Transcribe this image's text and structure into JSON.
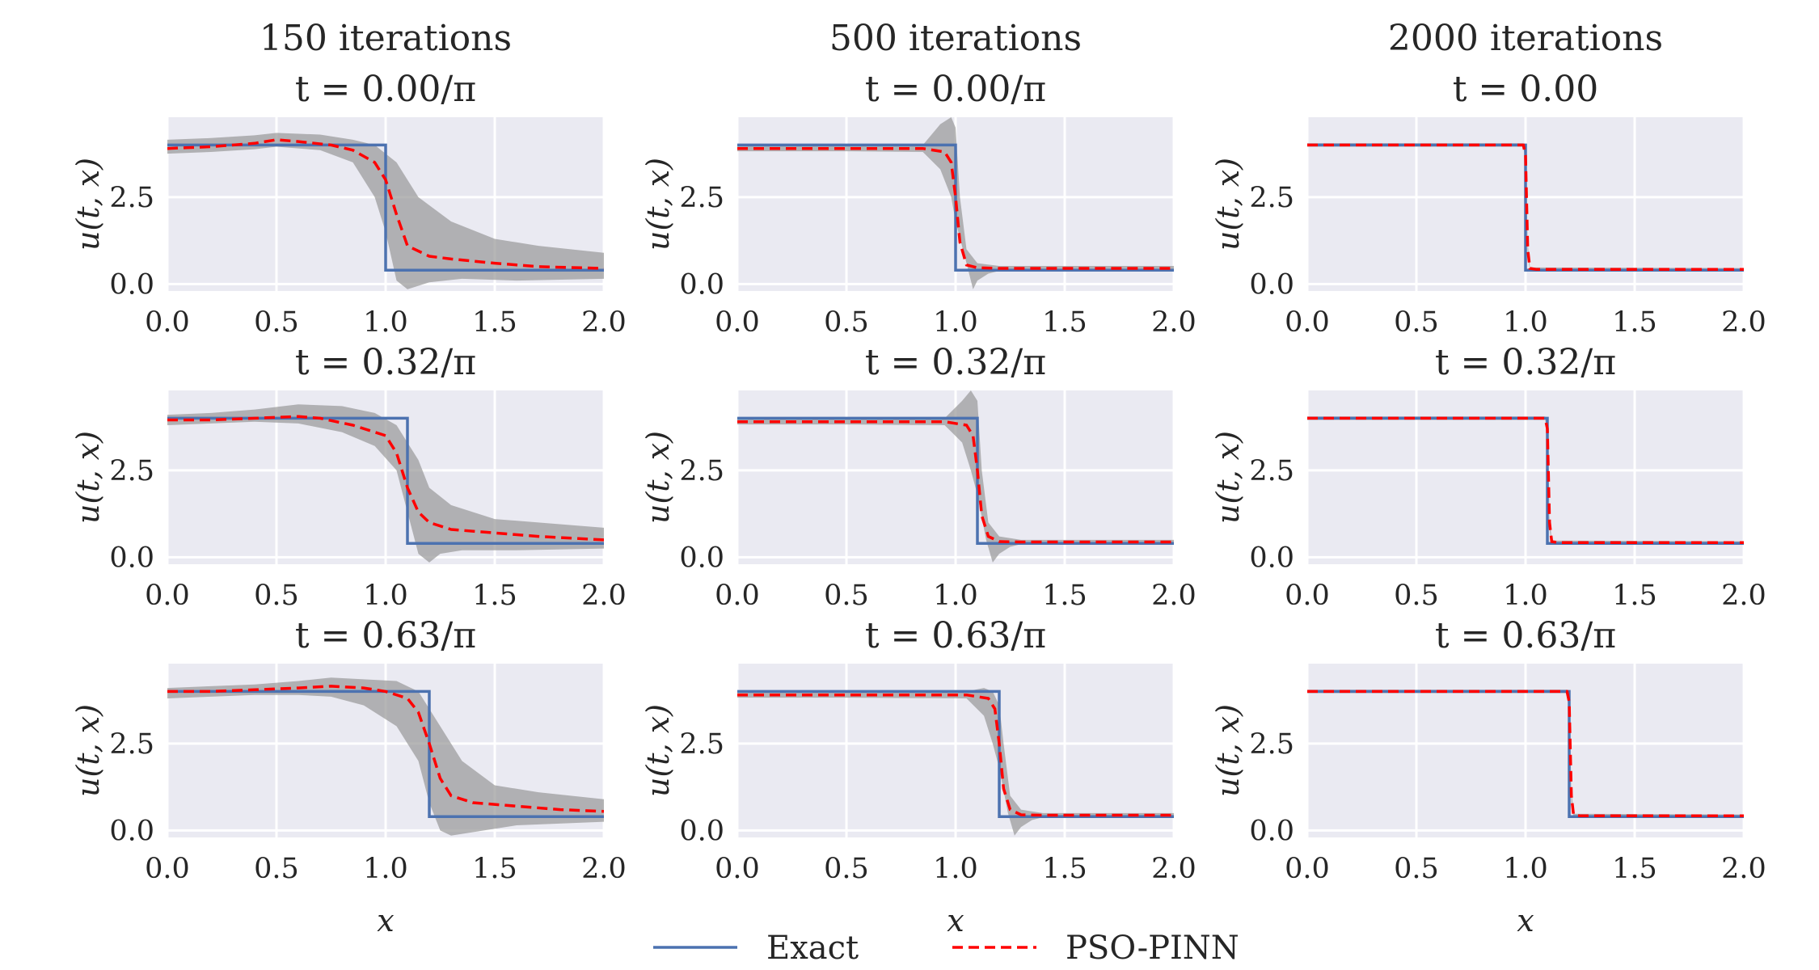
{
  "chart_data": {
    "type": "line",
    "column_titles": [
      "150 iterations",
      "500 iterations",
      "2000 iterations"
    ],
    "panel_titles": [
      [
        "t = 0.00/π",
        "t = 0.00/π",
        "t = 0.00"
      ],
      [
        "t = 0.32/π",
        "t = 0.32/π",
        "t = 0.32/π"
      ],
      [
        "t = 0.63/π",
        "t = 0.63/π",
        "t = 0.63/π"
      ]
    ],
    "xlabel": "x",
    "ylabel": "u(t, x)",
    "xlim": [
      0,
      2
    ],
    "ylim": [
      -0.2,
      4.8
    ],
    "xticks": [
      "0.0",
      "0.5",
      "1.0",
      "1.5",
      "2.0"
    ],
    "yticks": [
      "0.0",
      "2.5"
    ],
    "grid": true,
    "legend": {
      "position": "bottom-center",
      "entries": [
        "Exact",
        "PSO-PINN"
      ]
    },
    "colors": {
      "exact": "#4c72b0",
      "pso_pinn": "#ff0000",
      "band": "#9a9a9a",
      "panel_bg": "#eaeaf2",
      "grid": "#ffffff"
    },
    "exact_shock_x": [
      1.0,
      1.1,
      1.2
    ],
    "exact_values": {
      "left": 4.0,
      "right": 0.4
    },
    "panels": [
      [
        {
          "pso_pinn": {
            "x": [
              0.0,
              0.2,
              0.4,
              0.5,
              0.6,
              0.75,
              0.85,
              0.95,
              1.0,
              1.05,
              1.1,
              1.2,
              1.3,
              1.5,
              1.7,
              2.0
            ],
            "y": [
              3.9,
              3.95,
              4.05,
              4.15,
              4.1,
              4.0,
              3.85,
              3.5,
              3.0,
              2.0,
              1.1,
              0.8,
              0.72,
              0.6,
              0.5,
              0.45
            ]
          },
          "band_upper": {
            "x": [
              0.0,
              0.2,
              0.4,
              0.5,
              0.7,
              0.85,
              0.95,
              1.05,
              1.15,
              1.3,
              1.5,
              1.7,
              2.0
            ],
            "y": [
              4.15,
              4.2,
              4.28,
              4.35,
              4.3,
              4.15,
              4.0,
              3.5,
              2.5,
              1.8,
              1.3,
              1.1,
              0.9
            ]
          },
          "band_lower": {
            "x": [
              0.0,
              0.2,
              0.4,
              0.5,
              0.7,
              0.85,
              0.95,
              1.0,
              1.05,
              1.1,
              1.2,
              1.35,
              1.6,
              2.0
            ],
            "y": [
              3.75,
              3.8,
              3.88,
              3.95,
              3.85,
              3.5,
              2.5,
              1.5,
              0.1,
              -0.15,
              0.05,
              0.15,
              0.1,
              0.15
            ]
          }
        },
        {
          "pso_pinn": {
            "x": [
              0.0,
              0.5,
              0.85,
              0.95,
              0.98,
              1.0,
              1.02,
              1.05,
              1.1,
              1.2,
              2.0
            ],
            "y": [
              3.9,
              3.9,
              3.9,
              3.8,
              3.5,
              2.5,
              1.2,
              0.55,
              0.47,
              0.45,
              0.45
            ]
          },
          "band_upper": {
            "x": [
              0.0,
              0.5,
              0.85,
              0.93,
              0.98,
              1.0,
              1.02,
              1.05,
              1.1,
              1.2,
              2.0
            ],
            "y": [
              3.98,
              3.98,
              4.0,
              4.6,
              4.8,
              4.5,
              2.5,
              1.0,
              0.6,
              0.52,
              0.52
            ]
          },
          "band_lower": {
            "x": [
              0.0,
              0.5,
              0.85,
              0.93,
              0.98,
              1.0,
              1.05,
              1.08,
              1.1,
              1.15,
              1.2,
              2.0
            ],
            "y": [
              3.82,
              3.82,
              3.8,
              3.3,
              2.5,
              1.8,
              0.6,
              -0.15,
              0.1,
              0.3,
              0.38,
              0.38
            ]
          }
        },
        {
          "pso_pinn": {
            "x": [
              0.0,
              0.5,
              0.99,
              1.0,
              1.01,
              1.02,
              1.05,
              2.0
            ],
            "y": [
              4.0,
              4.0,
              4.0,
              3.7,
              1.0,
              0.45,
              0.42,
              0.42
            ]
          },
          "band_upper": {
            "x": [
              0.0,
              0.99,
              1.0,
              1.01,
              1.02,
              2.0
            ],
            "y": [
              4.05,
              4.05,
              3.85,
              1.2,
              0.48,
              0.46
            ]
          },
          "band_lower": {
            "x": [
              0.0,
              0.99,
              1.0,
              1.01,
              1.02,
              2.0
            ],
            "y": [
              3.95,
              3.95,
              3.55,
              0.8,
              0.4,
              0.38
            ]
          }
        }
      ],
      [
        {
          "pso_pinn": {
            "x": [
              0.0,
              0.2,
              0.4,
              0.6,
              0.7,
              0.85,
              1.0,
              1.05,
              1.1,
              1.15,
              1.2,
              1.3,
              1.5,
              1.7,
              2.0
            ],
            "y": [
              3.95,
              3.95,
              4.0,
              4.05,
              4.0,
              3.8,
              3.5,
              3.0,
              2.0,
              1.3,
              1.0,
              0.8,
              0.7,
              0.6,
              0.5
            ]
          },
          "band_upper": {
            "x": [
              0.0,
              0.2,
              0.4,
              0.6,
              0.8,
              0.95,
              1.05,
              1.15,
              1.2,
              1.3,
              1.5,
              1.7,
              2.0
            ],
            "y": [
              4.1,
              4.15,
              4.25,
              4.4,
              4.35,
              4.15,
              3.8,
              2.8,
              2.0,
              1.5,
              1.1,
              1.0,
              0.85
            ]
          },
          "band_lower": {
            "x": [
              0.0,
              0.2,
              0.4,
              0.6,
              0.8,
              0.95,
              1.05,
              1.1,
              1.15,
              1.2,
              1.25,
              1.35,
              1.6,
              2.0
            ],
            "y": [
              3.8,
              3.85,
              3.9,
              3.85,
              3.6,
              3.2,
              2.5,
              1.3,
              0.1,
              -0.15,
              0.1,
              0.2,
              0.2,
              0.25
            ]
          }
        },
        {
          "pso_pinn": {
            "x": [
              0.0,
              0.5,
              0.95,
              1.05,
              1.08,
              1.1,
              1.12,
              1.15,
              1.2,
              1.3,
              2.0
            ],
            "y": [
              3.9,
              3.9,
              3.9,
              3.8,
              3.5,
              2.5,
              1.2,
              0.6,
              0.45,
              0.44,
              0.44
            ]
          },
          "band_upper": {
            "x": [
              0.0,
              0.5,
              0.95,
              1.03,
              1.07,
              1.1,
              1.12,
              1.15,
              1.2,
              1.3,
              2.0
            ],
            "y": [
              3.98,
              3.98,
              4.0,
              4.5,
              4.8,
              4.5,
              2.5,
              1.0,
              0.6,
              0.5,
              0.5
            ]
          },
          "band_lower": {
            "x": [
              0.0,
              0.5,
              0.95,
              1.03,
              1.07,
              1.1,
              1.14,
              1.17,
              1.2,
              1.25,
              1.3,
              2.0
            ],
            "y": [
              3.82,
              3.82,
              3.8,
              3.3,
              2.5,
              1.8,
              0.5,
              -0.15,
              0.1,
              0.3,
              0.38,
              0.38
            ]
          }
        },
        {
          "pso_pinn": {
            "x": [
              0.0,
              0.5,
              1.09,
              1.1,
              1.11,
              1.12,
              1.15,
              2.0
            ],
            "y": [
              4.0,
              4.0,
              4.0,
              3.7,
              1.0,
              0.45,
              0.42,
              0.42
            ]
          },
          "band_upper": {
            "x": [
              0.0,
              1.09,
              1.1,
              1.11,
              1.12,
              2.0
            ],
            "y": [
              4.05,
              4.05,
              3.85,
              1.2,
              0.48,
              0.46
            ]
          },
          "band_lower": {
            "x": [
              0.0,
              1.09,
              1.1,
              1.11,
              1.12,
              2.0
            ],
            "y": [
              3.95,
              3.95,
              3.55,
              0.8,
              0.4,
              0.38
            ]
          }
        }
      ],
      [
        {
          "pso_pinn": {
            "x": [
              0.0,
              0.2,
              0.4,
              0.6,
              0.75,
              0.9,
              1.0,
              1.1,
              1.15,
              1.2,
              1.25,
              1.3,
              1.4,
              1.6,
              1.8,
              2.0
            ],
            "y": [
              4.0,
              4.0,
              4.05,
              4.1,
              4.15,
              4.1,
              4.0,
              3.8,
              3.4,
              2.5,
              1.5,
              1.0,
              0.8,
              0.7,
              0.6,
              0.55
            ]
          },
          "band_upper": {
            "x": [
              0.0,
              0.2,
              0.4,
              0.6,
              0.75,
              0.9,
              1.05,
              1.15,
              1.25,
              1.35,
              1.5,
              1.7,
              2.0
            ],
            "y": [
              4.1,
              4.15,
              4.2,
              4.3,
              4.4,
              4.35,
              4.3,
              4.0,
              3.0,
              2.0,
              1.3,
              1.1,
              0.9
            ]
          },
          "band_lower": {
            "x": [
              0.0,
              0.2,
              0.4,
              0.6,
              0.75,
              0.9,
              1.05,
              1.15,
              1.2,
              1.25,
              1.3,
              1.4,
              1.6,
              2.0
            ],
            "y": [
              3.8,
              3.85,
              3.9,
              3.9,
              3.85,
              3.6,
              3.0,
              2.0,
              0.8,
              0.0,
              -0.15,
              -0.05,
              0.15,
              0.25
            ]
          }
        },
        {
          "pso_pinn": {
            "x": [
              0.0,
              0.5,
              1.05,
              1.15,
              1.18,
              1.2,
              1.22,
              1.25,
              1.3,
              1.4,
              2.0
            ],
            "y": [
              3.9,
              3.9,
              3.9,
              3.8,
              3.5,
              2.5,
              1.2,
              0.6,
              0.45,
              0.44,
              0.44
            ]
          },
          "band_upper": {
            "x": [
              0.0,
              0.5,
              1.05,
              1.13,
              1.17,
              1.2,
              1.22,
              1.25,
              1.3,
              1.4,
              2.0
            ],
            "y": [
              3.98,
              3.98,
              4.0,
              4.1,
              4.0,
              3.6,
              2.5,
              1.0,
              0.6,
              0.5,
              0.5
            ]
          },
          "band_lower": {
            "x": [
              0.0,
              0.5,
              1.05,
              1.13,
              1.17,
              1.2,
              1.24,
              1.27,
              1.3,
              1.35,
              1.4,
              2.0
            ],
            "y": [
              3.82,
              3.82,
              3.8,
              3.3,
              2.5,
              1.8,
              0.5,
              -0.15,
              0.1,
              0.3,
              0.38,
              0.38
            ]
          }
        },
        {
          "pso_pinn": {
            "x": [
              0.0,
              0.5,
              1.19,
              1.2,
              1.21,
              1.22,
              1.25,
              2.0
            ],
            "y": [
              4.0,
              4.0,
              4.0,
              3.7,
              1.0,
              0.45,
              0.42,
              0.42
            ]
          },
          "band_upper": {
            "x": [
              0.0,
              1.19,
              1.2,
              1.21,
              1.22,
              2.0
            ],
            "y": [
              4.05,
              4.05,
              3.85,
              1.2,
              0.48,
              0.46
            ]
          },
          "band_lower": {
            "x": [
              0.0,
              1.19,
              1.2,
              1.21,
              1.22,
              2.0
            ],
            "y": [
              3.95,
              3.95,
              3.55,
              0.8,
              0.4,
              0.38
            ]
          }
        }
      ]
    ]
  }
}
